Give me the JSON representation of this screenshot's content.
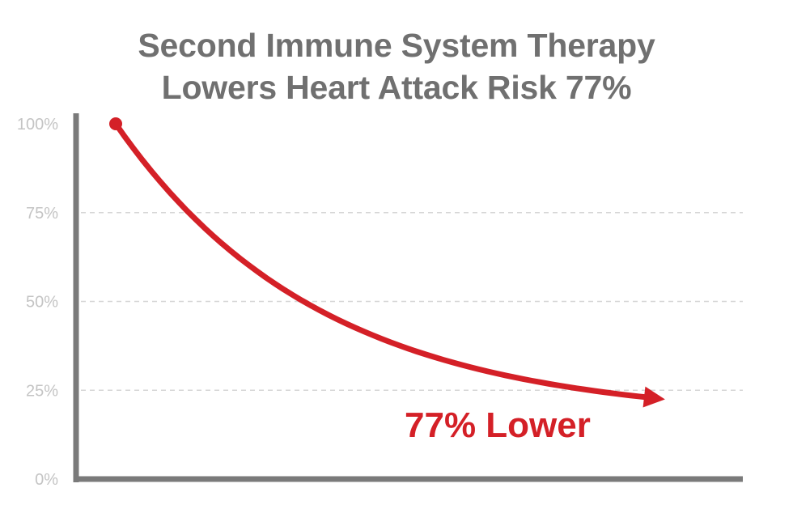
{
  "chart_data": {
    "type": "line",
    "title": "Second Immune System Therapy",
    "subtitle": "Lowers Heart Attack Risk 77%",
    "xlabel": "",
    "ylabel": "",
    "ylim": [
      0,
      100
    ],
    "yticks": [
      {
        "value": 0,
        "label": "0%"
      },
      {
        "value": 25,
        "label": "25%"
      },
      {
        "value": 50,
        "label": "50%"
      },
      {
        "value": 75,
        "label": "75%"
      },
      {
        "value": 100,
        "label": "100%"
      }
    ],
    "grid": "dashed horizontal at 25, 50, 75",
    "series": [
      {
        "color": "#d42027",
        "start": 100,
        "end": 23
      }
    ],
    "annotation": {
      "text": "77% Lower",
      "color": "#d42027"
    }
  },
  "colors": {
    "title": "#707070",
    "axis": "#7a7a7a",
    "grid": "#d6d6d6",
    "tick_label": "#c4c4c4",
    "accent": "#d42027"
  }
}
